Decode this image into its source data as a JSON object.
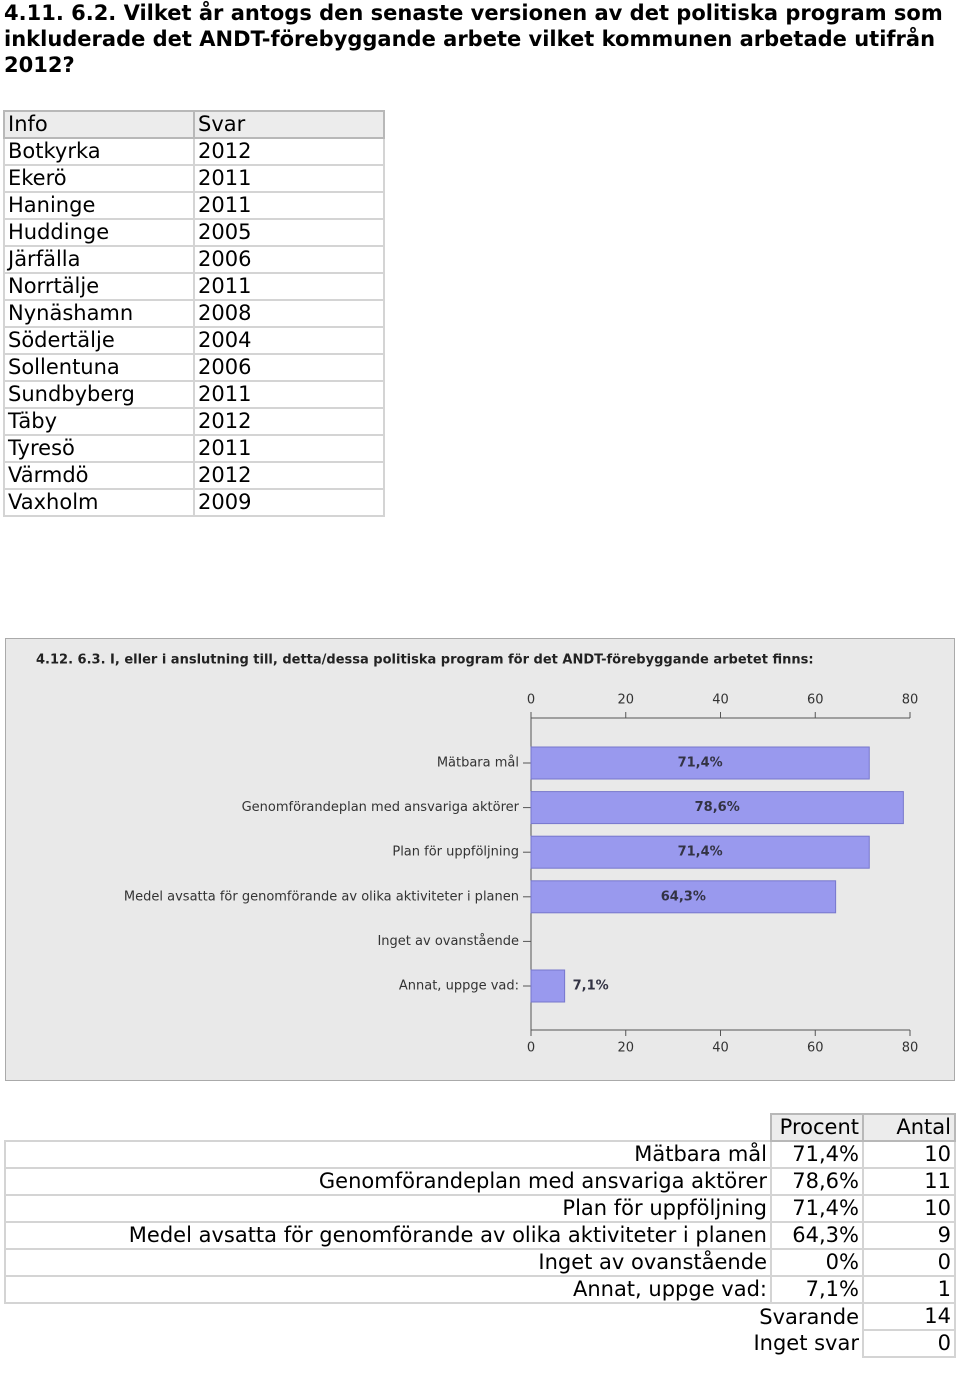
{
  "heading": "4.11. 6.2. Vilket år antogs den senaste versionen av det politiska program som inkluderade det ANDT-förebyggande arbete vilket kommunen arbetade utifrån 2012?",
  "table": {
    "header": [
      "Info",
      "Svar"
    ],
    "rows": [
      [
        "Botkyrka",
        "2012"
      ],
      [
        "Ekerö",
        "2011"
      ],
      [
        "Haninge",
        "2011"
      ],
      [
        "Huddinge",
        "2005"
      ],
      [
        "Järfälla",
        "2006"
      ],
      [
        "Norrtälje",
        "2011"
      ],
      [
        "Nynäshamn",
        "2008"
      ],
      [
        "Södertälje",
        "2004"
      ],
      [
        "Sollentuna",
        "2006"
      ],
      [
        "Sundbyberg",
        "2011"
      ],
      [
        "Täby",
        "2012"
      ],
      [
        "Tyresö",
        "2011"
      ],
      [
        "Värmdö",
        "2012"
      ],
      [
        "Vaxholm",
        "2009"
      ]
    ]
  },
  "chart_data": {
    "type": "bar",
    "orientation": "horizontal",
    "title": "4.12. 6.3. I, eller i anslutning till, detta/dessa politiska program för det ANDT-förebyggande arbetet finns:",
    "categories": [
      "Mätbara mål",
      "Genomförandeplan med ansvariga aktörer",
      "Plan för uppföljning",
      "Medel avsatta för genomförande av olika aktiviteter i planen",
      "Inget av ovanstående",
      "Annat, uppge vad:"
    ],
    "values": [
      71.4,
      78.6,
      71.4,
      64.3,
      0,
      7.1
    ],
    "value_labels": [
      "71,4%",
      "78,6%",
      "71,4%",
      "64,3%",
      null,
      "7,1%"
    ],
    "color": "#9999ee",
    "xlim": [
      0,
      80
    ],
    "xticks": [
      0,
      20,
      40,
      60,
      80
    ]
  },
  "summary_table": {
    "header": [
      "Procent",
      "Antal"
    ],
    "rows": [
      [
        "Mätbara mål",
        "71,4%",
        "10"
      ],
      [
        "Genomförandeplan med ansvariga aktörer",
        "78,6%",
        "11"
      ],
      [
        "Plan för uppföljning",
        "71,4%",
        "10"
      ],
      [
        "Medel avsatta för genomförande av olika aktiviteter i planen",
        "64,3%",
        "9"
      ],
      [
        "Inget av ovanstående",
        "0%",
        "0"
      ],
      [
        "Annat, uppge vad:",
        "7,1%",
        "1"
      ]
    ],
    "totals": [
      [
        "Svarande",
        "14"
      ],
      [
        "Inget svar",
        "0"
      ]
    ]
  }
}
